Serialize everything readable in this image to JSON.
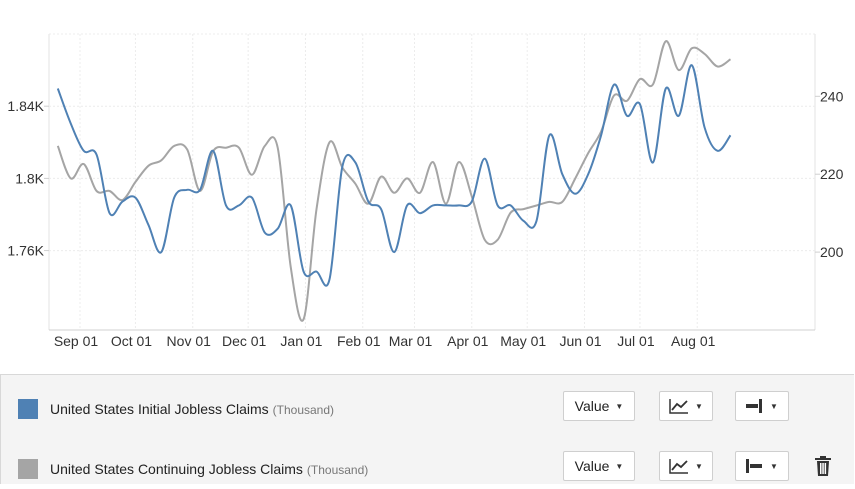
{
  "chart_data": {
    "type": "line",
    "x_ticks": [
      "Sep 01",
      "Oct 01",
      "Nov 01",
      "Dec 01",
      "Jan 01",
      "Feb 01",
      "Mar 01",
      "Apr 01",
      "May 01",
      "Jun 01",
      "Jul 01",
      "Aug 01"
    ],
    "left_axis": {
      "ticks": [
        "1.76K",
        "1.8K",
        "1.84K"
      ],
      "tick_values": [
        1760,
        1800,
        1840
      ]
    },
    "right_axis": {
      "ticks": [
        "200",
        "220",
        "240"
      ],
      "tick_values": [
        200,
        220,
        240
      ]
    },
    "grid": true,
    "series": [
      {
        "name": "United States Initial Jobless Claims",
        "unit": "(Thousand)",
        "axis": "right",
        "color": "#4f81b4",
        "dates": [
          "2020-08-20",
          "2020-08-27",
          "2020-09-03",
          "2020-09-10",
          "2020-09-17",
          "2020-09-24",
          "2020-10-01",
          "2020-10-08",
          "2020-10-15",
          "2020-10-22",
          "2020-10-29",
          "2020-11-05",
          "2020-11-12",
          "2020-11-19",
          "2020-11-26",
          "2020-12-03",
          "2020-12-10",
          "2020-12-17",
          "2020-12-24",
          "2020-12-31",
          "2021-01-07",
          "2021-01-14",
          "2021-01-21",
          "2021-01-28",
          "2021-02-04",
          "2021-02-11",
          "2021-02-18",
          "2021-02-25",
          "2021-03-04",
          "2021-03-11",
          "2021-03-18",
          "2021-03-25",
          "2021-04-01",
          "2021-04-08",
          "2021-04-15",
          "2021-04-22",
          "2021-04-29",
          "2021-05-06",
          "2021-05-13",
          "2021-05-20",
          "2021-05-27",
          "2021-06-03",
          "2021-06-10",
          "2021-06-17",
          "2021-06-24",
          "2021-07-01",
          "2021-07-08",
          "2021-07-15",
          "2021-07-22",
          "2021-07-29",
          "2021-08-05",
          "2021-08-12",
          "2021-08-19"
        ],
        "values": [
          242,
          233,
          226,
          225,
          210,
          213,
          214,
          207,
          200,
          214,
          216,
          216,
          226,
          212,
          212,
          214,
          205,
          206,
          212,
          195,
          195,
          193,
          222,
          223,
          213,
          211,
          200,
          212,
          210,
          212,
          212,
          212,
          213,
          224,
          212,
          212,
          208,
          208,
          230,
          220,
          215,
          220,
          230,
          243,
          235,
          238,
          223,
          242,
          235,
          248,
          232,
          226,
          230
        ]
      },
      {
        "name": "United States Continuing Jobless Claims",
        "unit": "(Thousand)",
        "axis": "left",
        "color": "#a5a5a5",
        "dates": [
          "2020-08-20",
          "2020-08-27",
          "2020-09-03",
          "2020-09-10",
          "2020-09-17",
          "2020-09-24",
          "2020-10-01",
          "2020-10-08",
          "2020-10-15",
          "2020-10-22",
          "2020-10-29",
          "2020-11-05",
          "2020-11-12",
          "2020-11-19",
          "2020-11-26",
          "2020-12-03",
          "2020-12-10",
          "2020-12-17",
          "2020-12-24",
          "2020-12-31",
          "2021-01-07",
          "2021-01-14",
          "2021-01-21",
          "2021-01-28",
          "2021-02-04",
          "2021-02-11",
          "2021-02-18",
          "2021-02-25",
          "2021-03-04",
          "2021-03-11",
          "2021-03-18",
          "2021-03-25",
          "2021-04-01",
          "2021-04-08",
          "2021-04-15",
          "2021-04-22",
          "2021-04-29",
          "2021-05-06",
          "2021-05-13",
          "2021-05-20",
          "2021-05-27",
          "2021-06-03",
          "2021-06-10",
          "2021-06-17",
          "2021-06-24",
          "2021-07-01",
          "2021-07-08",
          "2021-07-15",
          "2021-07-22",
          "2021-07-29",
          "2021-08-05",
          "2021-08-12",
          "2021-08-19"
        ],
        "values": [
          1818,
          1800,
          1808,
          1793,
          1793,
          1788,
          1798,
          1807,
          1810,
          1818,
          1816,
          1793,
          1815,
          1817,
          1817,
          1802,
          1818,
          1817,
          1751,
          1722,
          1783,
          1820,
          1806,
          1797,
          1786,
          1801,
          1792,
          1800,
          1792,
          1809,
          1786,
          1809,
          1790,
          1766,
          1766,
          1781,
          1783,
          1785,
          1787,
          1787,
          1800,
          1814,
          1826,
          1846,
          1843,
          1855,
          1852,
          1876,
          1860,
          1872,
          1869,
          1862,
          1866
        ]
      }
    ],
    "y_ranges": {
      "left": [
        1716,
        1880
      ],
      "right": [
        180,
        256
      ]
    }
  },
  "legend": {
    "value_label": "Value",
    "delete_icon": "trash-icon"
  }
}
